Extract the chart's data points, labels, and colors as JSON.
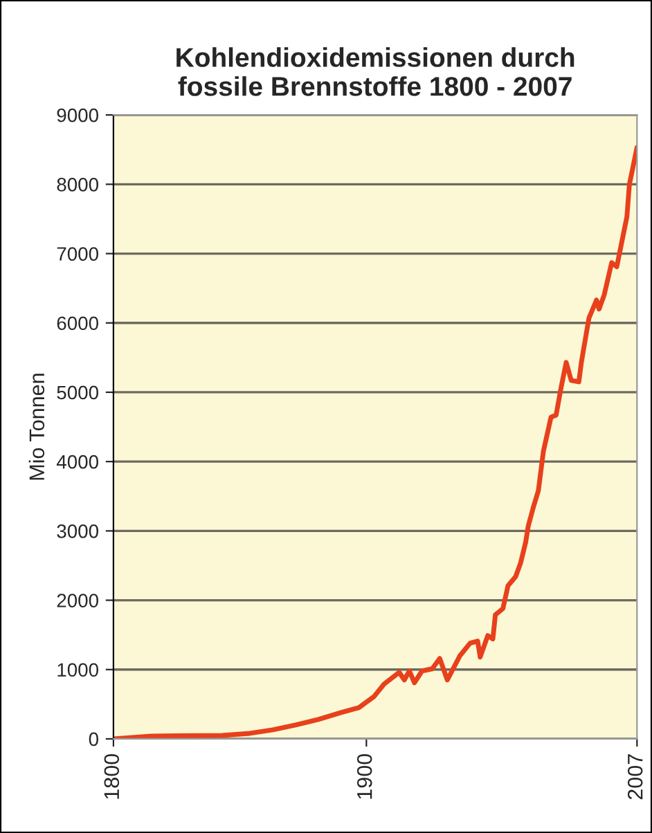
{
  "chart_data": {
    "type": "line",
    "title": "Kohlendioxidemissionen durch\nfossile Brennstoffe 1800 - 2007",
    "ylabel": "Mio Tonnen",
    "series": [
      {
        "color": "#e8401c",
        "x": [
          1800,
          1815,
          1843,
          1854,
          1863,
          1872,
          1881,
          1890,
          1897,
          1903,
          1907,
          1913,
          1915,
          1917,
          1919,
          1922,
          1926,
          1929,
          1932,
          1937,
          1941,
          1944,
          1945,
          1948,
          1950,
          1951,
          1954,
          1956,
          1959,
          1961,
          1963,
          1964,
          1966,
          1968,
          1970,
          1973,
          1975,
          1977,
          1979,
          1981,
          1984,
          1985,
          1988,
          1991,
          1992,
          1994,
          1997,
          1999,
          2001,
          2003,
          2004,
          2007
        ],
        "values": [
          0,
          40,
          50,
          80,
          130,
          200,
          280,
          380,
          450,
          610,
          790,
          960,
          850,
          980,
          810,
          980,
          1010,
          1160,
          850,
          1200,
          1380,
          1410,
          1180,
          1490,
          1440,
          1790,
          1880,
          2210,
          2340,
          2540,
          2840,
          3070,
          3340,
          3580,
          4150,
          4640,
          4670,
          5070,
          5430,
          5170,
          5150,
          5430,
          6070,
          6330,
          6200,
          6400,
          6870,
          6810,
          7170,
          7530,
          8000,
          8530
        ]
      }
    ],
    "xlim": [
      1800,
      2007
    ],
    "xticks": [
      1800,
      1900,
      2007
    ],
    "ylim": [
      0,
      9000
    ],
    "yticks": [
      0,
      1000,
      2000,
      3000,
      4000,
      5000,
      6000,
      7000,
      8000,
      9000
    ],
    "grid": "y",
    "legend": false,
    "marker": "none",
    "line_style": "solid"
  }
}
